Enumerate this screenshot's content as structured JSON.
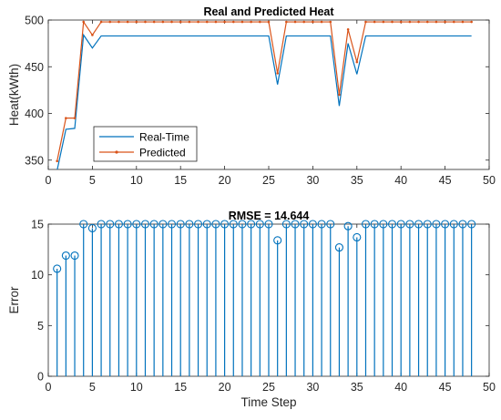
{
  "chart_data": [
    {
      "type": "line",
      "title": "Real and Predicted Heat",
      "xlabel": "",
      "ylabel": "Heat(kWth)",
      "xlim": [
        0,
        50
      ],
      "ylim": [
        340,
        500
      ],
      "xticks": [
        0,
        5,
        10,
        15,
        20,
        25,
        30,
        35,
        40,
        45,
        50
      ],
      "yticks": [
        350,
        400,
        450,
        500
      ],
      "grid": false,
      "legend_position": "bottom-left",
      "x": [
        1,
        2,
        3,
        4,
        5,
        6,
        7,
        8,
        9,
        10,
        11,
        12,
        13,
        14,
        15,
        16,
        17,
        18,
        19,
        20,
        21,
        22,
        23,
        24,
        25,
        26,
        27,
        28,
        29,
        30,
        31,
        32,
        33,
        34,
        35,
        36,
        37,
        38,
        39,
        40,
        41,
        42,
        43,
        44,
        45,
        46,
        47,
        48
      ],
      "series": [
        {
          "name": "Real-Time",
          "color": "#0072BD",
          "marker": "none",
          "values": [
            339,
            383,
            384,
            484,
            470,
            483,
            483,
            483,
            483,
            483,
            483,
            483,
            483,
            483,
            483,
            483,
            483,
            483,
            483,
            483,
            483,
            483,
            483,
            483,
            483,
            431,
            483,
            483,
            483,
            483,
            483,
            483,
            408,
            475,
            442,
            483,
            483,
            483,
            483,
            483,
            483,
            483,
            483,
            483,
            483,
            483,
            483,
            483
          ]
        },
        {
          "name": "Predicted",
          "color": "#D95319",
          "marker": "dot",
          "values": [
            349,
            395,
            395,
            498,
            484,
            498,
            498,
            498,
            498,
            498,
            498,
            498,
            498,
            498,
            498,
            498,
            498,
            498,
            498,
            498,
            498,
            498,
            498,
            498,
            498,
            443,
            498,
            498,
            498,
            498,
            498,
            498,
            420,
            490,
            455,
            498,
            498,
            498,
            498,
            498,
            498,
            498,
            498,
            498,
            498,
            498,
            498,
            498
          ]
        }
      ]
    },
    {
      "type": "stem",
      "title": "RMSE = 14.644",
      "xlabel": "Time Step",
      "ylabel": "Error",
      "xlim": [
        0,
        50
      ],
      "ylim": [
        0,
        15
      ],
      "xticks": [
        0,
        5,
        10,
        15,
        20,
        25,
        30,
        35,
        40,
        45,
        50
      ],
      "yticks": [
        0,
        5,
        10,
        15
      ],
      "grid": false,
      "color": "#0072BD",
      "marker": "circle",
      "x": [
        1,
        2,
        3,
        4,
        5,
        6,
        7,
        8,
        9,
        10,
        11,
        12,
        13,
        14,
        15,
        16,
        17,
        18,
        19,
        20,
        21,
        22,
        23,
        24,
        25,
        26,
        27,
        28,
        29,
        30,
        31,
        32,
        33,
        34,
        35,
        36,
        37,
        38,
        39,
        40,
        41,
        42,
        43,
        44,
        45,
        46,
        47,
        48
      ],
      "values": [
        10.6,
        11.9,
        11.9,
        15,
        14.6,
        15,
        15,
        15,
        15,
        15,
        15,
        15,
        15,
        15,
        15,
        15,
        15,
        15,
        15,
        15,
        15,
        15,
        15,
        15,
        15,
        13.4,
        15,
        15,
        15,
        15,
        15,
        15,
        12.7,
        14.8,
        13.7,
        15,
        15,
        15,
        15,
        15,
        15,
        15,
        15,
        15,
        15,
        15,
        15,
        15
      ]
    }
  ]
}
